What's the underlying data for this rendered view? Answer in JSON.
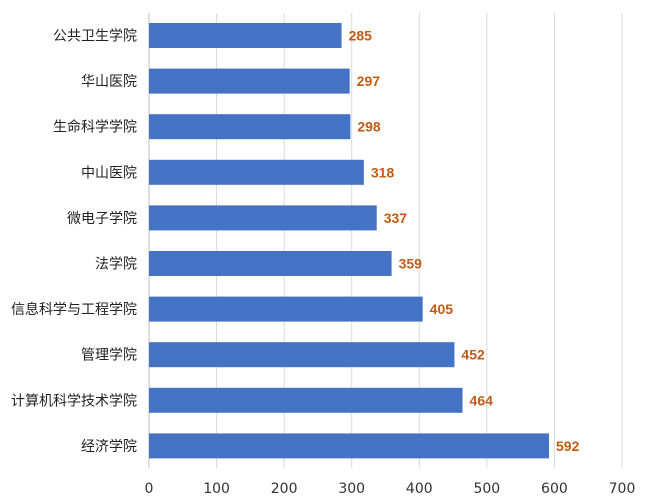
{
  "chart_data": {
    "type": "bar",
    "orientation": "horizontal",
    "categories": [
      "公共卫生学院",
      "华山医院",
      "生命科学学院",
      "中山医院",
      "微电子学院",
      "法学院",
      "信息科学与工程学院",
      "管理学院",
      "计算机科学技术学院",
      "经济学院"
    ],
    "values": [
      285,
      297,
      298,
      318,
      337,
      359,
      405,
      452,
      464,
      592
    ],
    "xlim": [
      0,
      700
    ],
    "xticks": [
      0,
      100,
      200,
      300,
      400,
      500,
      600,
      700
    ],
    "title": "",
    "xlabel": "",
    "ylabel": "",
    "grid": "vertical",
    "legend": "none",
    "colors": {
      "bar": "#4472c4",
      "data_label": "#c55a11",
      "grid": "#d9d9d9"
    }
  }
}
